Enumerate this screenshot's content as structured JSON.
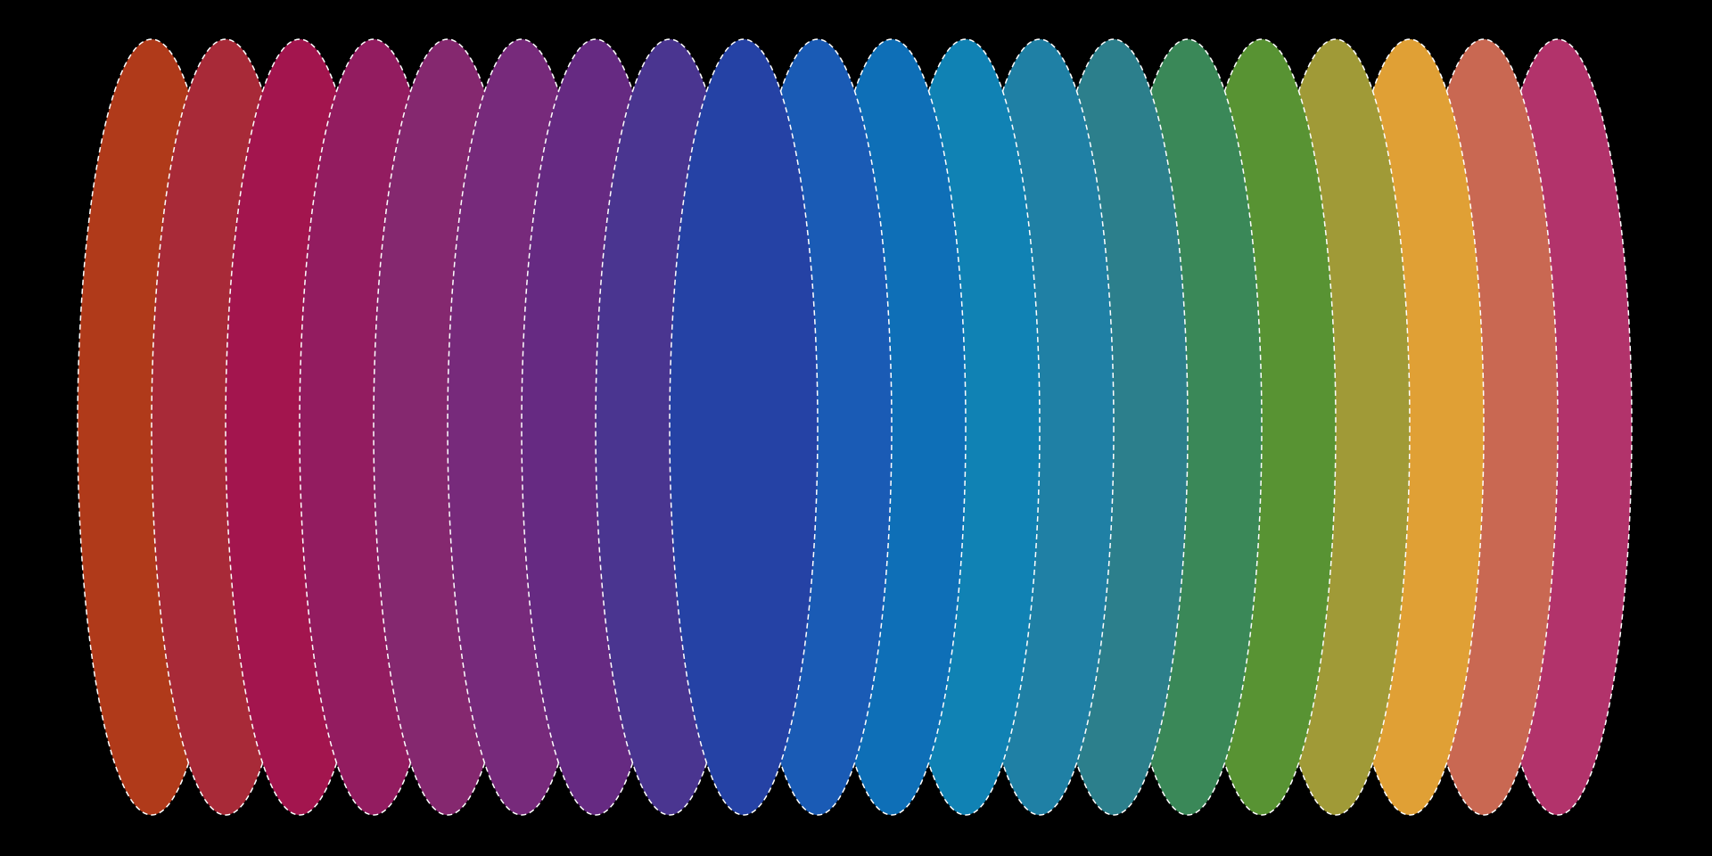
{
  "background": "#000000",
  "outline": "#ffffff",
  "ellipses": [
    {
      "color": "#b03a1a"
    },
    {
      "color": "#a82a38"
    },
    {
      "color": "#a3154e"
    },
    {
      "color": "#931c60"
    },
    {
      "color": "#85286f"
    },
    {
      "color": "#772a7b"
    },
    {
      "color": "#662a82"
    },
    {
      "color": "#4a3590"
    },
    {
      "color": "#2542a5"
    },
    {
      "color": "#1a5bb5"
    },
    {
      "color": "#0e6fb7"
    },
    {
      "color": "#1082b4"
    },
    {
      "color": "#1f80a5"
    },
    {
      "color": "#2c7f8c"
    },
    {
      "color": "#3a8858"
    },
    {
      "color": "#589333"
    },
    {
      "color": "#a09a37"
    },
    {
      "color": "#e0a035"
    },
    {
      "color": "#c96852"
    },
    {
      "color": "#b2336b"
    }
  ]
}
